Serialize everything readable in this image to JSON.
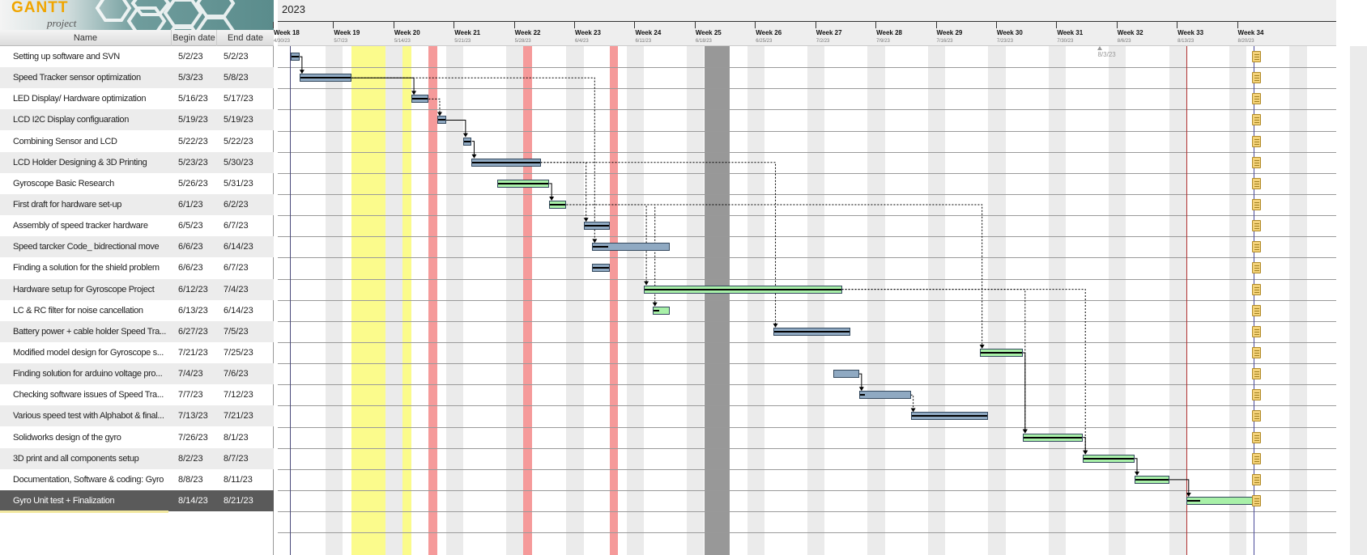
{
  "app": {
    "logo_text": "GANTT",
    "logo_sub": "project"
  },
  "table": {
    "headers": {
      "name": "Name",
      "begin": "Begin date",
      "end": "End date"
    },
    "selected_index": 21,
    "tasks": [
      {
        "name": "Setting up software and SVN",
        "begin": "5/2/23",
        "end": "5/2/23",
        "color": "#8fa9c2",
        "progress": 100
      },
      {
        "name": "Speed Tracker sensor optimization",
        "begin": "5/3/23",
        "end": "5/8/23",
        "color": "#8fa9c2",
        "progress": 100
      },
      {
        "name": "LED Display/ Hardware optimization",
        "begin": "5/16/23",
        "end": "5/17/23",
        "color": "#8fa9c2",
        "progress": 100
      },
      {
        "name": "LCD I2C Display configuaration",
        "begin": "5/19/23",
        "end": "5/19/23",
        "color": "#8fa9c2",
        "progress": 100
      },
      {
        "name": "Combining Sensor and LCD",
        "begin": "5/22/23",
        "end": "5/22/23",
        "color": "#8fa9c2",
        "progress": 100
      },
      {
        "name": "LCD Holder Designing & 3D Printing",
        "begin": "5/23/23",
        "end": "5/30/23",
        "color": "#8fa9c2",
        "progress": 100
      },
      {
        "name": "Gyroscope Basic Research",
        "begin": "5/26/23",
        "end": "5/31/23",
        "color": "#a8f0a8",
        "progress": 100
      },
      {
        "name": "First draft for hardware set-up",
        "begin": "6/1/23",
        "end": "6/2/23",
        "color": "#a8f0a8",
        "progress": 100
      },
      {
        "name": "Assembly of speed tracker hardware",
        "begin": "6/5/23",
        "end": "6/7/23",
        "color": "#8fa9c2",
        "progress": 100
      },
      {
        "name": "Speed tarcker Code_ bidrectional move",
        "begin": "6/6/23",
        "end": "6/14/23",
        "color": "#8fa9c2",
        "progress": 20
      },
      {
        "name": "Finding a solution for the shield problem",
        "begin": "6/6/23",
        "end": "6/7/23",
        "color": "#8fa9c2",
        "progress": 100
      },
      {
        "name": "Hardware setup for Gyroscope Project",
        "begin": "6/12/23",
        "end": "7/4/23",
        "color": "#a8f0a8",
        "progress": 100
      },
      {
        "name": "LC & RC filter for noise cancellation",
        "begin": "6/13/23",
        "end": "6/14/23",
        "color": "#a8f0a8",
        "progress": 40
      },
      {
        "name": "Battery power + cable holder Speed Tra...",
        "begin": "6/27/23",
        "end": "7/5/23",
        "color": "#8fa9c2",
        "progress": 100
      },
      {
        "name": "Modified model design for Gyroscope s...",
        "begin": "7/21/23",
        "end": "7/25/23",
        "color": "#a8f0a8",
        "progress": 100
      },
      {
        "name": "Finding solution for arduino voltage pro...",
        "begin": "7/4/23",
        "end": "7/6/23",
        "color": "#8fa9c2",
        "progress": 0
      },
      {
        "name": "Checking software issues of Speed Tra...",
        "begin": "7/7/23",
        "end": "7/12/23",
        "color": "#8fa9c2",
        "progress": 10
      },
      {
        "name": "Various speed test with Alphabot & final...",
        "begin": "7/13/23",
        "end": "7/21/23",
        "color": "#8fa9c2",
        "progress": 100
      },
      {
        "name": "Solidworks design of the gyro",
        "begin": "7/26/23",
        "end": "8/1/23",
        "color": "#a8f0a8",
        "progress": 100
      },
      {
        "name": "3D print and all components setup",
        "begin": "8/2/23",
        "end": "8/7/23",
        "color": "#a8f0a8",
        "progress": 100
      },
      {
        "name": "Documentation, Software & coding: Gyro",
        "begin": "8/8/23",
        "end": "8/11/23",
        "color": "#a8f0a8",
        "progress": 100
      },
      {
        "name": "Gyro Unit test + Finalization",
        "begin": "8/14/23",
        "end": "8/21/23",
        "color": "#a8f0a8",
        "progress": 20
      }
    ]
  },
  "timeline": {
    "year": "2023",
    "start_date": "4/30/23",
    "weeks": [
      {
        "label": "Week 18",
        "date": "4/30/23"
      },
      {
        "label": "Week 19",
        "date": "5/7/23"
      },
      {
        "label": "Week 20",
        "date": "5/14/23"
      },
      {
        "label": "Week 21",
        "date": "5/21/23"
      },
      {
        "label": "Week 22",
        "date": "5/28/23"
      },
      {
        "label": "Week 23",
        "date": "6/4/23"
      },
      {
        "label": "Week 24",
        "date": "6/11/23"
      },
      {
        "label": "Week 25",
        "date": "6/18/23"
      },
      {
        "label": "Week 26",
        "date": "6/25/23"
      },
      {
        "label": "Week 27",
        "date": "7/2/23"
      },
      {
        "label": "Week 28",
        "date": "7/9/23"
      },
      {
        "label": "Week 29",
        "date": "7/16/23"
      },
      {
        "label": "Week 30",
        "date": "7/23/23"
      },
      {
        "label": "Week 31",
        "date": "7/30/23"
      },
      {
        "label": "Week 32",
        "date": "8/6/23"
      },
      {
        "label": "Week 33",
        "date": "8/13/23"
      },
      {
        "label": "Week 34",
        "date": "8/20/23"
      }
    ],
    "marker_label": "8/3/23",
    "today": "8/14/23",
    "holidays": [
      {
        "from": "5/9/23",
        "to": "5/12/23",
        "color": "#fbfb8c"
      },
      {
        "from": "5/15/23",
        "to": "5/15/23",
        "color": "#fbfb8c"
      },
      {
        "from": "5/18/23",
        "to": "5/18/23",
        "color": "#f59a9a"
      },
      {
        "from": "5/29/23",
        "to": "5/29/23",
        "color": "#f59a9a"
      },
      {
        "from": "6/8/23",
        "to": "6/8/23",
        "color": "#f59a9a"
      },
      {
        "from": "6/19/23",
        "to": "6/21/23",
        "color": "#989898"
      }
    ],
    "weekend_color": "#ebebeb",
    "dependencies": [
      [
        0,
        1,
        "solid"
      ],
      [
        1,
        2,
        "solid"
      ],
      [
        1,
        9,
        "dashed"
      ],
      [
        2,
        3,
        "dashed"
      ],
      [
        3,
        4,
        "solid"
      ],
      [
        4,
        5,
        "solid"
      ],
      [
        5,
        8,
        "dashed"
      ],
      [
        5,
        13,
        "dashed"
      ],
      [
        6,
        7,
        "solid"
      ],
      [
        7,
        11,
        "dashed"
      ],
      [
        7,
        12,
        "dashed"
      ],
      [
        7,
        14,
        "dashed"
      ],
      [
        11,
        18,
        "dashed"
      ],
      [
        11,
        19,
        "dashed"
      ],
      [
        14,
        18,
        "solid"
      ],
      [
        15,
        16,
        "solid"
      ],
      [
        16,
        17,
        "dashed"
      ],
      [
        18,
        19,
        "solid"
      ],
      [
        19,
        20,
        "solid"
      ],
      [
        20,
        21,
        "solid"
      ]
    ]
  }
}
